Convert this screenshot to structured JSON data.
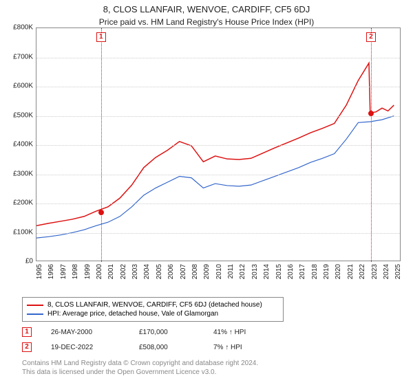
{
  "title": "8, CLOS LLANFAIR, WENVOE, CARDIFF, CF5 6DJ",
  "subtitle": "Price paid vs. HM Land Registry's House Price Index (HPI)",
  "chart": {
    "type": "line",
    "background_color": "#ffffff",
    "border_color": "#888888",
    "grid_color": "#cccccc",
    "y": {
      "min": 0,
      "max": 800000,
      "tick_step": 100000,
      "ticks": [
        "£0",
        "£100K",
        "£200K",
        "£300K",
        "£400K",
        "£500K",
        "£600K",
        "£700K",
        "£800K"
      ],
      "label_fontsize": 10
    },
    "x": {
      "min": 1995,
      "max": 2025.5,
      "ticks": [
        1995,
        1996,
        1997,
        1998,
        1999,
        2000,
        2001,
        2002,
        2003,
        2004,
        2005,
        2006,
        2007,
        2008,
        2009,
        2010,
        2011,
        2012,
        2013,
        2014,
        2015,
        2016,
        2017,
        2018,
        2019,
        2020,
        2021,
        2022,
        2023,
        2024,
        2025
      ],
      "label_fontsize": 10
    },
    "series": [
      {
        "name": "property",
        "label": "8, CLOS LLANFAIR, WENVOE, CARDIFF, CF5 6DJ (detached house)",
        "color": "#dd1111",
        "line_width": 1.5,
        "points": [
          [
            1995,
            120000
          ],
          [
            1996,
            128000
          ],
          [
            1997,
            135000
          ],
          [
            1998,
            142000
          ],
          [
            1999,
            152000
          ],
          [
            2000,
            170000
          ],
          [
            2001,
            185000
          ],
          [
            2002,
            215000
          ],
          [
            2003,
            260000
          ],
          [
            2004,
            320000
          ],
          [
            2005,
            355000
          ],
          [
            2006,
            380000
          ],
          [
            2007,
            410000
          ],
          [
            2008,
            395000
          ],
          [
            2009,
            340000
          ],
          [
            2010,
            360000
          ],
          [
            2011,
            350000
          ],
          [
            2012,
            348000
          ],
          [
            2013,
            352000
          ],
          [
            2014,
            370000
          ],
          [
            2015,
            388000
          ],
          [
            2016,
            405000
          ],
          [
            2017,
            422000
          ],
          [
            2018,
            440000
          ],
          [
            2019,
            455000
          ],
          [
            2020,
            472000
          ],
          [
            2021,
            535000
          ],
          [
            2022,
            620000
          ],
          [
            2022.9,
            680000
          ],
          [
            2023,
            508000
          ],
          [
            2023.5,
            512000
          ],
          [
            2024,
            525000
          ],
          [
            2024.5,
            515000
          ],
          [
            2025,
            535000
          ]
        ]
      },
      {
        "name": "hpi",
        "label": "HPI: Average price, detached house, Vale of Glamorgan",
        "color": "#3366cc",
        "line_width": 1.2,
        "points": [
          [
            1995,
            78000
          ],
          [
            1996,
            82000
          ],
          [
            1997,
            88000
          ],
          [
            1998,
            96000
          ],
          [
            1999,
            106000
          ],
          [
            2000,
            120000
          ],
          [
            2001,
            132000
          ],
          [
            2002,
            152000
          ],
          [
            2003,
            185000
          ],
          [
            2004,
            225000
          ],
          [
            2005,
            250000
          ],
          [
            2006,
            270000
          ],
          [
            2007,
            290000
          ],
          [
            2008,
            285000
          ],
          [
            2009,
            250000
          ],
          [
            2010,
            265000
          ],
          [
            2011,
            258000
          ],
          [
            2012,
            256000
          ],
          [
            2013,
            260000
          ],
          [
            2014,
            275000
          ],
          [
            2015,
            290000
          ],
          [
            2016,
            305000
          ],
          [
            2017,
            320000
          ],
          [
            2018,
            338000
          ],
          [
            2019,
            352000
          ],
          [
            2020,
            368000
          ],
          [
            2021,
            418000
          ],
          [
            2022,
            475000
          ],
          [
            2023,
            478000
          ],
          [
            2024,
            485000
          ],
          [
            2025,
            498000
          ]
        ]
      }
    ],
    "markers": [
      {
        "id": "1",
        "year": 2000.4,
        "value": 170000,
        "color": "#dd1111"
      },
      {
        "id": "2",
        "year": 2022.97,
        "value": 508000,
        "color": "#dd1111"
      }
    ]
  },
  "legend": {
    "border_color": "#888888",
    "fontsize": 10,
    "items": [
      {
        "color": "#dd1111",
        "label": "8, CLOS LLANFAIR, WENVOE, CARDIFF, CF5 6DJ (detached house)"
      },
      {
        "color": "#3366cc",
        "label": "HPI: Average price, detached house, Vale of Glamorgan"
      }
    ]
  },
  "events": [
    {
      "id": "1",
      "color": "#dd1111",
      "date": "26-MAY-2000",
      "price": "£170,000",
      "pct": "41% ↑ HPI"
    },
    {
      "id": "2",
      "color": "#dd1111",
      "date": "19-DEC-2022",
      "price": "£508,000",
      "pct": "7% ↑ HPI"
    }
  ],
  "footer": {
    "line1": "Contains HM Land Registry data © Crown copyright and database right 2024.",
    "line2": "This data is licensed under the Open Government Licence v3.0.",
    "color": "#888888",
    "fontsize": 10
  }
}
